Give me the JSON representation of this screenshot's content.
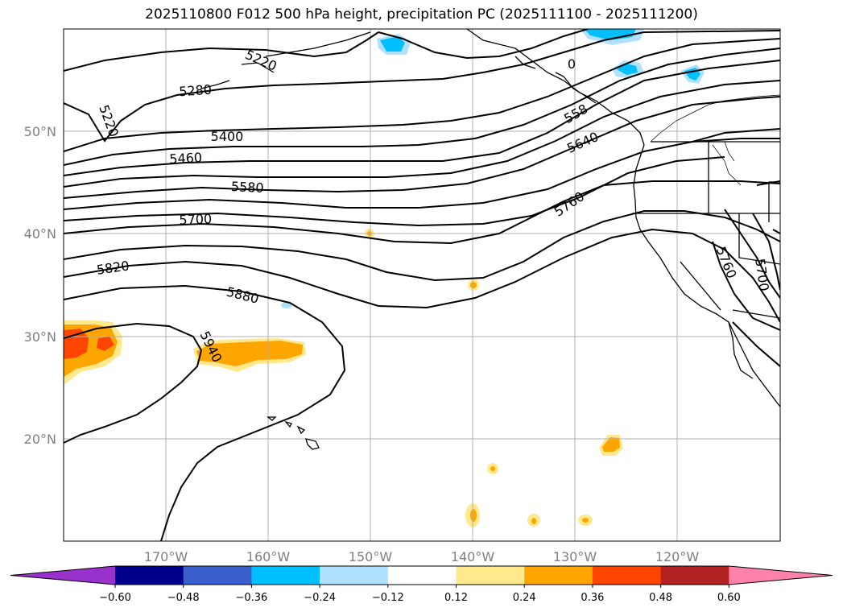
{
  "title": "2025110800 F012 500 hPa height, precipitation PC (2025111100 - 2025111200)",
  "map": {
    "lat_labels": [
      "50°N",
      "40°N",
      "30°N",
      "20°N"
    ],
    "lon_labels": [
      "170°W",
      "160°W",
      "150°W",
      "140°W",
      "130°W",
      "120°W"
    ],
    "contour_labels": [
      "5220",
      "5280",
      "5220",
      "5400",
      "5460",
      "5580",
      "5700",
      "5820",
      "5880",
      "5940",
      "5760",
      "5640",
      "558",
      "5760",
      "5700",
      "0"
    ]
  },
  "colorbar": {
    "ticks": [
      "−0.60",
      "−0.48",
      "−0.36",
      "−0.24",
      "−0.12",
      "0.12",
      "0.24",
      "0.36",
      "0.48",
      "0.60"
    ],
    "colors": [
      "#9932cc",
      "#00008b",
      "#3a5fcd",
      "#00bfff",
      "#b0e2ff",
      "#ffffff",
      "#ffe98c",
      "#ffa500",
      "#ff4500",
      "#b22222",
      "#ff82ab"
    ]
  }
}
